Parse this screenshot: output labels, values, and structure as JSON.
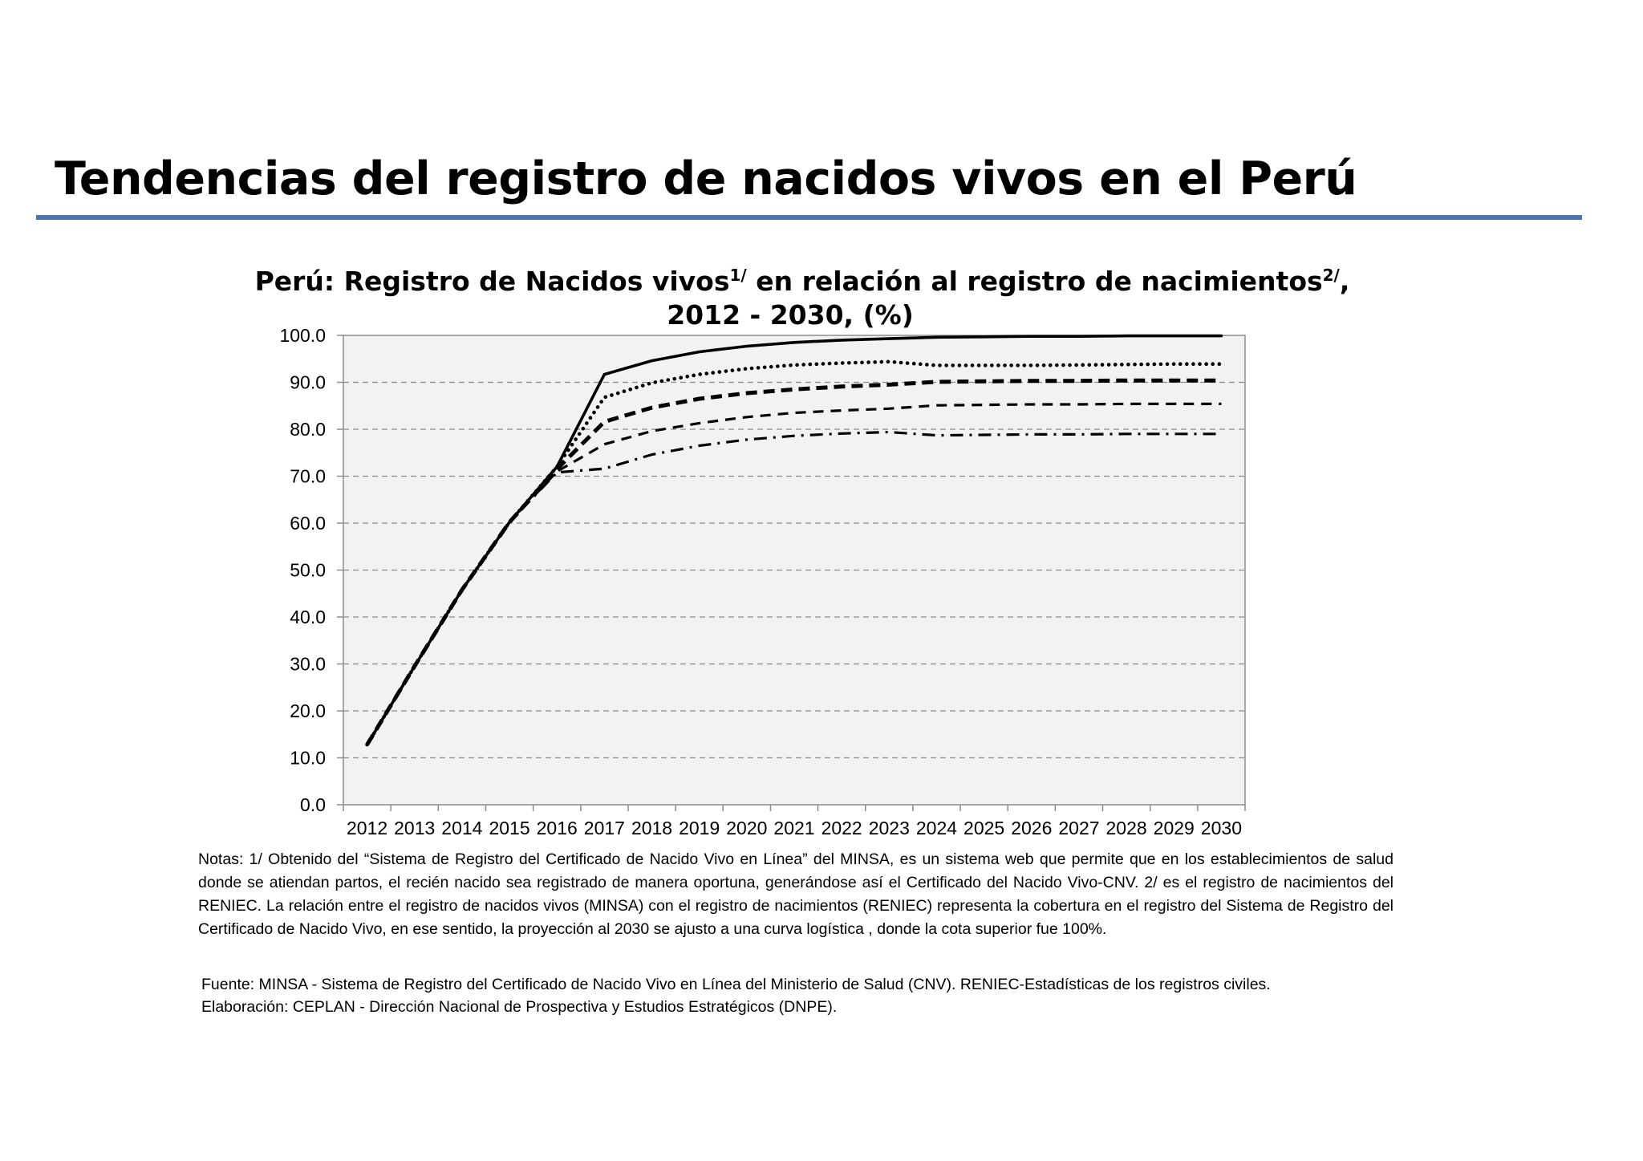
{
  "page": {
    "title": "Tendencias del registro de nacidos vivos en el Perú",
    "accent_color": "#4f73b1"
  },
  "chart_data": {
    "type": "line",
    "title_line1_main": "Perú: Registro de Nacidos vivos",
    "title_line1_sup1": "1/",
    "title_line1_mid": " en relación al registro de nacimientos",
    "title_line1_sup2": "2/",
    "title_line1_end": ",",
    "title_line2": "2012 - 2030, (%)",
    "xlabel": "",
    "ylabel": "",
    "categories": [
      "2012",
      "2013",
      "2014",
      "2015",
      "2016",
      "2017",
      "2018",
      "2019",
      "2020",
      "2021",
      "2022",
      "2023",
      "2024",
      "2025",
      "2026",
      "2027",
      "2028",
      "2029",
      "2030"
    ],
    "y_ticks": [
      "0.0",
      "10.0",
      "20.0",
      "30.0",
      "40.0",
      "50.0",
      "60.0",
      "70.0",
      "80.0",
      "90.0",
      "100.0"
    ],
    "ylim": [
      0,
      100
    ],
    "grid": "horizontal-dashed",
    "plot_background": "#f2f2f2",
    "series": [
      {
        "style": "solid",
        "values": [
          12.8,
          29.5,
          45.8,
          60.2,
          72.0,
          91.7,
          94.6,
          96.5,
          97.7,
          98.5,
          99.0,
          99.3,
          99.6,
          99.7,
          99.8,
          99.8,
          99.9,
          99.9,
          99.9
        ]
      },
      {
        "style": "dotted",
        "values": [
          12.8,
          29.5,
          45.8,
          60.2,
          72.0,
          86.8,
          89.9,
          91.7,
          92.9,
          93.7,
          94.1,
          94.4,
          93.6,
          93.6,
          93.6,
          93.7,
          93.8,
          93.9,
          93.9
        ]
      },
      {
        "style": "dashed-bold",
        "values": [
          12.8,
          29.5,
          45.8,
          60.2,
          71.5,
          81.6,
          84.6,
          86.5,
          87.7,
          88.5,
          89.1,
          89.5,
          90.1,
          90.2,
          90.3,
          90.3,
          90.4,
          90.4,
          90.4
        ]
      },
      {
        "style": "dashed",
        "values": [
          12.8,
          29.5,
          45.8,
          60.2,
          71.0,
          76.8,
          79.6,
          81.3,
          82.6,
          83.5,
          84.0,
          84.4,
          85.1,
          85.2,
          85.3,
          85.3,
          85.4,
          85.4,
          85.4
        ]
      },
      {
        "style": "dash-dot",
        "values": [
          12.8,
          29.5,
          45.8,
          60.2,
          70.8,
          71.6,
          74.6,
          76.5,
          77.8,
          78.6,
          79.1,
          79.4,
          78.7,
          78.8,
          78.9,
          78.9,
          79.0,
          79.0,
          79.0
        ]
      }
    ]
  },
  "notes": {
    "text": "Notas: 1/ Obtenido del “Sistema de Registro del Certificado de Nacido Vivo en Línea” del MINSA, es un sistema web que permite que en los establecimientos de salud donde se atiendan partos, el recién nacido sea registrado de manera oportuna,  generándose así el Certificado del Nacido Vivo-CNV. 2/ es el registro de nacimientos del RENIEC. La relación entre el registro de nacidos vivos (MINSA) con el registro de nacimientos (RENIEC) representa la cobertura en el registro del Sistema de Registro del Certificado de Nacido Vivo, en ese sentido, la proyección al 2030 se ajusto a una curva logística , donde la cota superior fue 100%."
  },
  "source": {
    "fuente": "Fuente: MINSA - Sistema de Registro del Certificado de Nacido Vivo en Línea del Ministerio de Salud (CNV). RENIEC-Estadísticas de los registros civiles.",
    "elaboracion": "Elaboración: CEPLAN - Dirección Nacional de Prospectiva y Estudios Estratégicos (DNPE)."
  }
}
